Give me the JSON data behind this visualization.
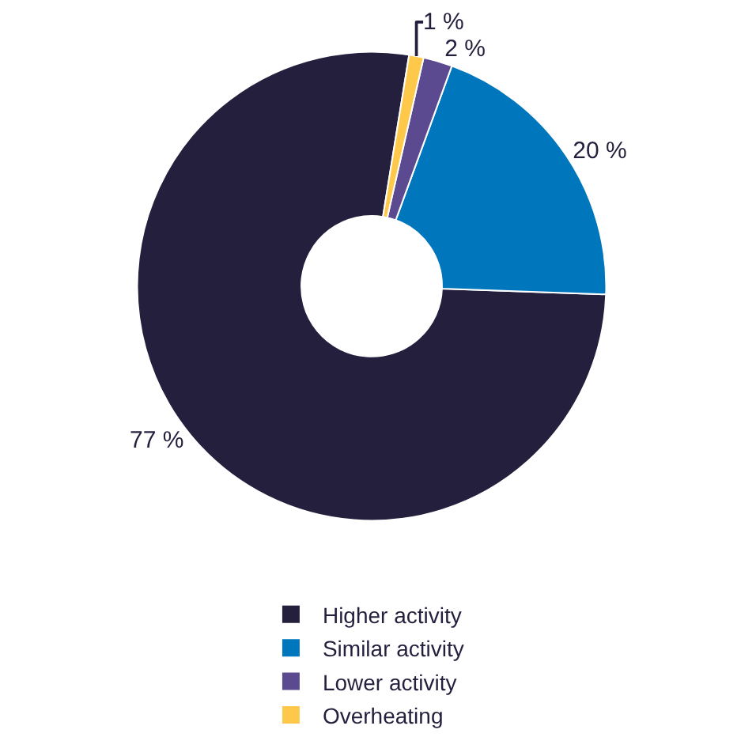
{
  "chart_data": {
    "type": "donut",
    "categories": [
      "Higher activity",
      "Similar activity",
      "Lower activity",
      "Overheating"
    ],
    "values": [
      77,
      20,
      2,
      1
    ],
    "colors": [
      "#231f3c",
      "#0077bd",
      "#5b4a8f",
      "#fec84a"
    ],
    "value_labels": [
      "77 %",
      "20 %",
      "2 %",
      "1 %"
    ],
    "legend": "bottom"
  }
}
